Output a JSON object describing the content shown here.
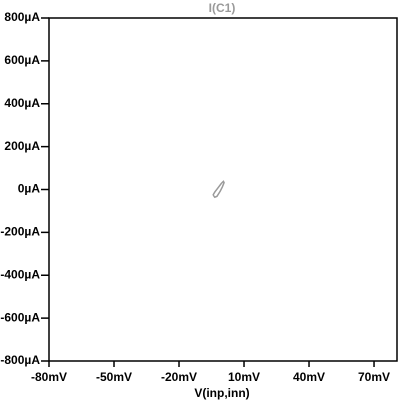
{
  "chart_data": {
    "type": "line",
    "x_label": "V(inp,inn)",
    "series": [
      {
        "name": "I(C1)",
        "color": "#9a9a9a",
        "x": [
          -4,
          -3.5,
          -2.5,
          -1,
          0,
          0.8,
          0.5,
          -0.5,
          -2,
          -3.5,
          -4.2,
          -4
        ],
        "values": [
          -30,
          -36,
          -32,
          -8,
          12,
          32,
          38,
          28,
          8,
          -12,
          -24,
          -30
        ]
      }
    ],
    "xlim": [
      -80,
      80.6
    ],
    "xticks": [
      {
        "value": -80,
        "label": "-80mV"
      },
      {
        "value": -50,
        "label": "-50mV"
      },
      {
        "value": -20,
        "label": "-20mV"
      },
      {
        "value": 10,
        "label": "10mV"
      },
      {
        "value": 40,
        "label": "40mV"
      },
      {
        "value": 70,
        "label": "70mV"
      }
    ],
    "ylim": [
      -800,
      800
    ],
    "yticks": [
      {
        "value": 800,
        "label": "800µA"
      },
      {
        "value": 600,
        "label": "600µA"
      },
      {
        "value": 400,
        "label": "400µA"
      },
      {
        "value": 200,
        "label": "200µA"
      },
      {
        "value": 0,
        "label": "0µA"
      },
      {
        "value": -200,
        "label": "-200µA"
      },
      {
        "value": -400,
        "label": "-400µA"
      },
      {
        "value": -600,
        "label": "-600µA"
      },
      {
        "value": -800,
        "label": "-800µA"
      }
    ],
    "grid": false
  }
}
